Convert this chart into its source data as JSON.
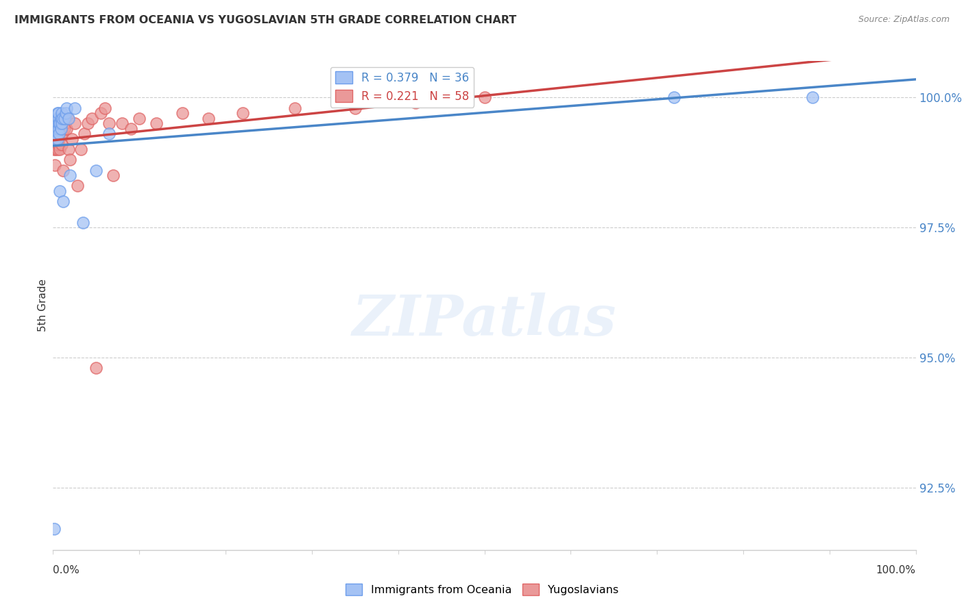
{
  "title": "IMMIGRANTS FROM OCEANIA VS YUGOSLAVIAN 5TH GRADE CORRELATION CHART",
  "source": "Source: ZipAtlas.com",
  "ylabel": "5th Grade",
  "y_ticks": [
    92.5,
    95.0,
    97.5,
    100.0
  ],
  "y_tick_labels": [
    "92.5%",
    "95.0%",
    "97.5%",
    "100.0%"
  ],
  "x_min": 0.0,
  "x_max": 1.0,
  "y_min": 91.3,
  "y_max": 100.7,
  "blue_R": 0.379,
  "blue_N": 36,
  "pink_R": 0.221,
  "pink_N": 58,
  "blue_color": "#a4c2f4",
  "pink_color": "#ea9999",
  "blue_edge_color": "#6d9eeb",
  "pink_edge_color": "#e06666",
  "blue_line_color": "#4a86c8",
  "pink_line_color": "#cc4444",
  "legend_label_blue": "Immigrants from Oceania",
  "legend_label_pink": "Yugoslavians",
  "blue_x": [
    0.001,
    0.002,
    0.002,
    0.003,
    0.003,
    0.003,
    0.004,
    0.004,
    0.005,
    0.005,
    0.005,
    0.006,
    0.006,
    0.006,
    0.007,
    0.007,
    0.008,
    0.008,
    0.009,
    0.009,
    0.01,
    0.01,
    0.011,
    0.012,
    0.013,
    0.015,
    0.016,
    0.018,
    0.02,
    0.025,
    0.035,
    0.05,
    0.065,
    0.38,
    0.72,
    0.88
  ],
  "blue_y": [
    91.7,
    99.3,
    99.5,
    99.2,
    99.5,
    99.6,
    99.3,
    99.6,
    99.2,
    99.5,
    99.7,
    99.4,
    99.6,
    99.7,
    99.3,
    99.5,
    98.2,
    99.5,
    99.4,
    99.6,
    99.5,
    99.7,
    99.6,
    98.0,
    99.6,
    99.7,
    99.8,
    99.6,
    98.5,
    99.8,
    97.6,
    98.6,
    99.3,
    100.0,
    100.0,
    100.0
  ],
  "pink_x": [
    0.001,
    0.001,
    0.002,
    0.002,
    0.002,
    0.003,
    0.003,
    0.003,
    0.004,
    0.004,
    0.004,
    0.005,
    0.005,
    0.005,
    0.006,
    0.006,
    0.006,
    0.007,
    0.007,
    0.008,
    0.008,
    0.009,
    0.009,
    0.01,
    0.01,
    0.011,
    0.011,
    0.012,
    0.013,
    0.014,
    0.015,
    0.016,
    0.017,
    0.018,
    0.02,
    0.022,
    0.025,
    0.028,
    0.032,
    0.036,
    0.04,
    0.045,
    0.05,
    0.055,
    0.06,
    0.065,
    0.07,
    0.08,
    0.09,
    0.1,
    0.12,
    0.15,
    0.18,
    0.22,
    0.28,
    0.35,
    0.42,
    0.5
  ],
  "pink_y": [
    99.0,
    99.2,
    98.7,
    99.3,
    99.5,
    99.0,
    99.2,
    99.5,
    99.1,
    99.3,
    99.6,
    99.0,
    99.4,
    99.6,
    99.1,
    99.3,
    99.5,
    99.2,
    99.4,
    99.0,
    99.5,
    99.3,
    99.6,
    99.1,
    99.5,
    99.3,
    99.6,
    98.6,
    99.4,
    99.5,
    99.6,
    99.4,
    99.6,
    99.0,
    98.8,
    99.2,
    99.5,
    98.3,
    99.0,
    99.3,
    99.5,
    99.6,
    94.8,
    99.7,
    99.8,
    99.5,
    98.5,
    99.5,
    99.4,
    99.6,
    99.5,
    99.7,
    99.6,
    99.7,
    99.8,
    99.8,
    99.9,
    100.0
  ]
}
